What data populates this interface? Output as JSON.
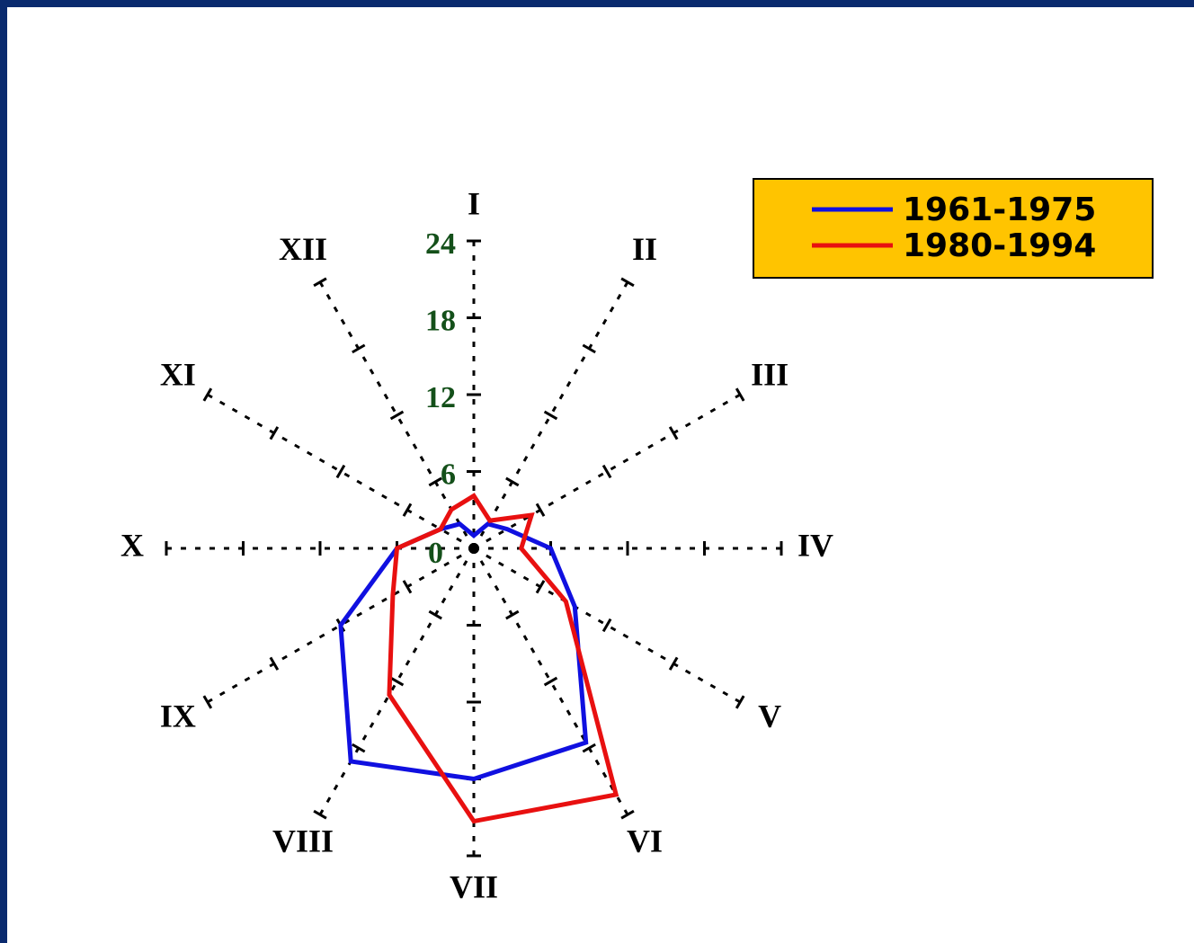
{
  "chart_data": {
    "type": "radar",
    "categories": [
      "I",
      "II",
      "III",
      "IV",
      "V",
      "VI",
      "VII",
      "VIII",
      "IX",
      "X",
      "XI",
      "XII"
    ],
    "series": [
      {
        "name": "1961-1975",
        "color": "#1010e0",
        "values": [
          1,
          2.2,
          3,
          6,
          9.1,
          17.5,
          18,
          19.2,
          12,
          6,
          3,
          2.2
        ]
      },
      {
        "name": "1980-1994",
        "color": "#e81010",
        "values": [
          4.1,
          2.5,
          5.2,
          3.7,
          8.3,
          22.2,
          21.3,
          13.2,
          7.3,
          6,
          3,
          3.5
        ]
      }
    ],
    "rlim": [
      0,
      24
    ],
    "rticks": [
      0,
      6,
      12,
      18,
      24
    ],
    "legend": "upper right"
  }
}
